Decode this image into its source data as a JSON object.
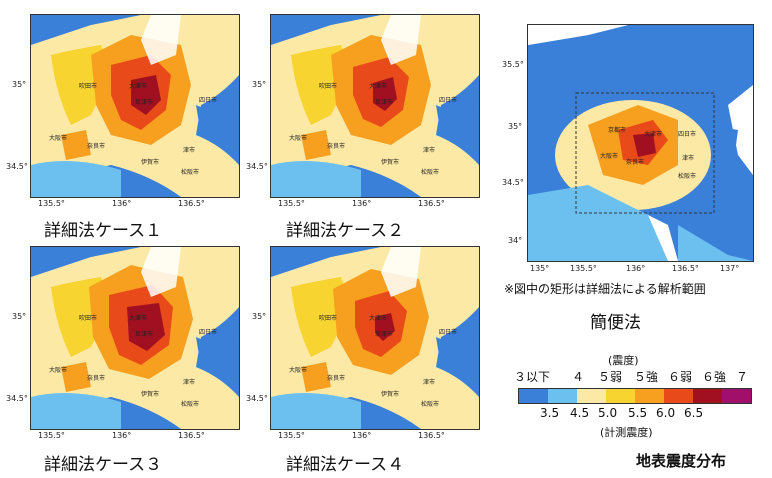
{
  "maps": [
    {
      "caption": "詳細法ケース１",
      "xticks": [
        "135.5°",
        "136°",
        "136.5°"
      ],
      "yticks": [
        "35°",
        "34.5°"
      ]
    },
    {
      "caption": "詳細法ケース２",
      "xticks": [
        "135.5°",
        "136°",
        "136.5°"
      ],
      "yticks": [
        "35°",
        "34.5°"
      ]
    },
    {
      "caption": "詳細法ケース３",
      "xticks": [
        "135.5°",
        "136°",
        "136.5°"
      ],
      "yticks": [
        "35°",
        "34.5°"
      ]
    },
    {
      "caption": "詳細法ケース４",
      "xticks": [
        "135.5°",
        "136°",
        "136.5°"
      ],
      "yticks": [
        "35°",
        "34.5°"
      ]
    }
  ],
  "simple_map": {
    "caption": "簡便法",
    "note": "※図中の矩形は詳細法による解析範囲",
    "xticks": [
      "135°",
      "135.5°",
      "136°",
      "136.5°",
      "137°"
    ],
    "yticks": [
      "35.5°",
      "35°",
      "34.5°",
      "34°"
    ]
  },
  "cities": [
    "京都市",
    "大津市",
    "草津市",
    "奈良市",
    "大阪市",
    "伊賀市",
    "津市",
    "四日市市",
    "松阪市"
  ],
  "legend": {
    "title_top": "(震度)",
    "intensity_labels": [
      "３以下",
      "４",
      "５弱",
      "５強",
      "６弱",
      "６強",
      "７"
    ],
    "value_labels": [
      "3.5",
      "4.5",
      "5.0",
      "5.5",
      "6.0",
      "6.5"
    ],
    "title_bottom": "(計測震度)",
    "colors": [
      "#3a7fd8",
      "#6cc0f0",
      "#fde9a6",
      "#f7d430",
      "#f7a020",
      "#e84a1a",
      "#a01020",
      "#a0106a"
    ]
  },
  "figure_title": "地表震度分布"
}
